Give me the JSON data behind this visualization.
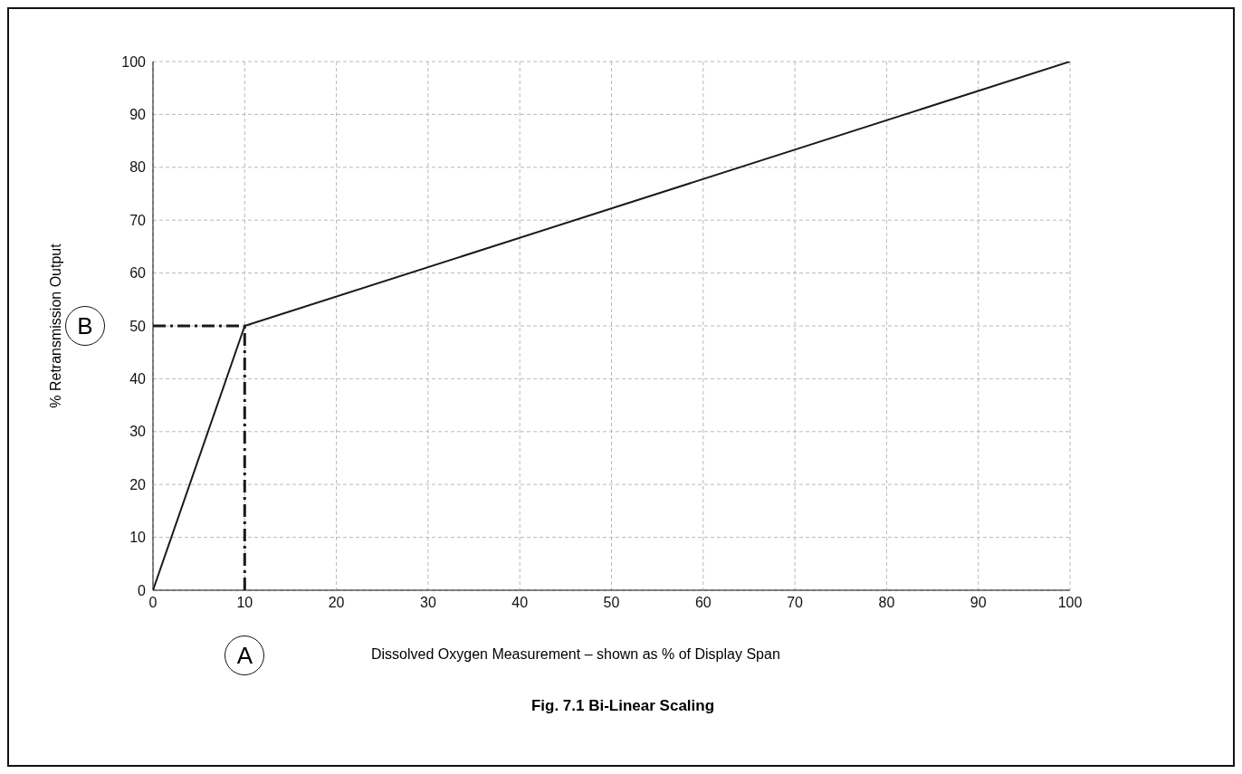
{
  "chart_data": {
    "type": "line",
    "title": "Fig. 7.1 Bi-Linear Scaling",
    "xlabel": "Dissolved Oxygen Measurement – shown as % of Display Span",
    "ylabel": "% Retransmission Output",
    "series": [
      {
        "color": "#1a1a1a",
        "x": [
          0,
          10,
          100
        ],
        "values": [
          0,
          50,
          100
        ]
      },
      {
        "color": "#1a1a1a",
        "x": [
          10,
          10
        ],
        "values": [
          0,
          50
        ],
        "line_style": "dashed"
      },
      {
        "color": "#1a1a1a",
        "x": [
          0,
          10
        ],
        "values": [
          50,
          50
        ],
        "line_style": "dashed"
      }
    ],
    "annotations": [
      "A",
      "B"
    ],
    "xlim": [
      0,
      100
    ],
    "xticks": [
      0,
      10,
      20,
      30,
      40,
      50,
      60,
      70,
      80,
      90,
      100
    ],
    "ylim": [
      0,
      100
    ],
    "yticks": [
      0,
      10,
      20,
      30,
      40,
      50,
      60,
      70,
      80,
      90,
      100
    ],
    "grid": true,
    "marker": "none",
    "line_style": "solid"
  }
}
